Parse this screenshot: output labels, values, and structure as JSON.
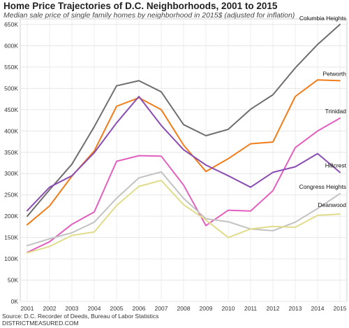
{
  "header": {
    "title": "Home Price Trajectories of D.C. Neighborhoods, 2001 to 2015",
    "subtitle": "Median sale price of single family homes by neighborhood in 2015$ (adjusted for inflation)"
  },
  "footer": {
    "source": "Source: D.C. Recorder of Deeds, Bureau of Labor Statistics",
    "site": "DISTRICTMEASURED.COM"
  },
  "chart_data": {
    "type": "line",
    "title": "Home Price Trajectories of D.C. Neighborhoods, 2001 to 2015",
    "subtitle": "Median sale price of single family homes by neighborhood in 2015$ (adjusted for inflation)",
    "xlabel": "",
    "ylabel": "",
    "x": [
      "2001",
      "2002",
      "2003",
      "2004",
      "2005",
      "2006",
      "2007",
      "2008",
      "2009",
      "2010",
      "2011",
      "2012",
      "2013",
      "2014",
      "2015"
    ],
    "ylim": [
      0,
      650000
    ],
    "yticks": [
      0,
      50000,
      100000,
      150000,
      200000,
      250000,
      300000,
      350000,
      400000,
      450000,
      500000,
      550000,
      600000,
      650000
    ],
    "ytick_labels": [
      "0K",
      "50K",
      "100K",
      "150K",
      "200K",
      "250K",
      "300K",
      "350K",
      "400K",
      "450K",
      "500K",
      "550K",
      "600K",
      "650K"
    ],
    "grid": true,
    "legend": "direct labels at line ends",
    "series": [
      {
        "name": "Columbia Heights",
        "color": "#6e6e6e",
        "values": [
          200000,
          262000,
          322000,
          410000,
          506000,
          518000,
          492000,
          415000,
          389000,
          404000,
          451000,
          485000,
          548000,
          603000,
          650000
        ]
      },
      {
        "name": "Petworth",
        "color": "#f07c1a",
        "values": [
          180000,
          224000,
          294000,
          353000,
          458000,
          478000,
          450000,
          367000,
          305000,
          335000,
          370000,
          374000,
          481000,
          520000,
          518000
        ]
      },
      {
        "name": "Trinidad",
        "color": "#e35fbf",
        "values": [
          115000,
          140000,
          181000,
          210000,
          329000,
          342000,
          341000,
          273000,
          178000,
          214000,
          212000,
          260000,
          361000,
          400000,
          430000
        ]
      },
      {
        "name": "Hillcrest",
        "color": "#8a4db3",
        "values": [
          213000,
          268000,
          295000,
          349000,
          419000,
          481000,
          413000,
          356000,
          320000,
          295000,
          268000,
          303000,
          316000,
          347000,
          303000
        ]
      },
      {
        "name": "Congress Heights",
        "color": "#c2c2c2",
        "values": [
          131000,
          147000,
          161000,
          186000,
          242000,
          290000,
          304000,
          242000,
          194000,
          187000,
          170000,
          166000,
          186000,
          218000,
          253000
        ]
      },
      {
        "name": "Deanwood",
        "color": "#e0dc8c",
        "values": [
          114000,
          129000,
          155000,
          163000,
          225000,
          270000,
          284000,
          227000,
          191000,
          150000,
          170000,
          176000,
          174000,
          202000,
          205000
        ]
      }
    ]
  }
}
